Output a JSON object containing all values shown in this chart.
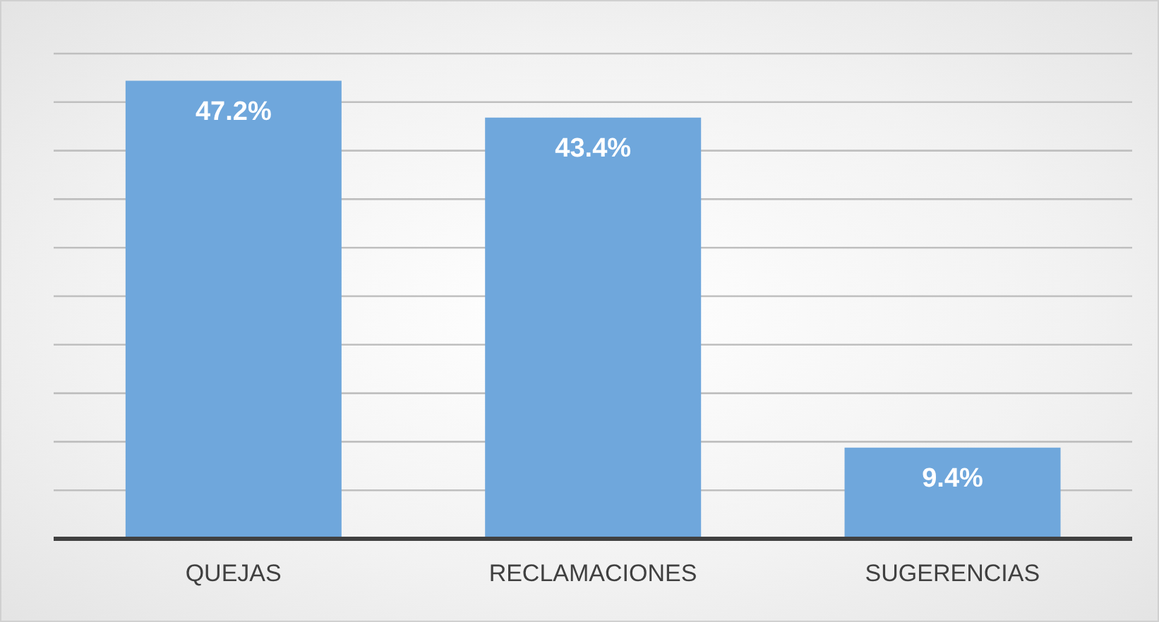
{
  "chart_data": {
    "type": "bar",
    "categories": [
      "QUEJAS",
      "RECLAMACIONES",
      "SUGERENCIAS"
    ],
    "values": [
      47.2,
      43.4,
      9.4
    ],
    "value_labels": [
      "47.2%",
      "43.4%",
      "9.4%"
    ],
    "color": "#6fa7dc",
    "ylim": [
      0,
      50
    ],
    "yticks": [
      {
        "value": 0,
        "label": null
      },
      {
        "value": 5,
        "label": null
      },
      {
        "value": 10,
        "label": null
      },
      {
        "value": 15,
        "label": null
      },
      {
        "value": 20,
        "label": null
      },
      {
        "value": 25,
        "label": null
      },
      {
        "value": 30,
        "label": null
      },
      {
        "value": 35,
        "label": null
      },
      {
        "value": 40,
        "label": null
      },
      {
        "value": 45,
        "label": null
      },
      {
        "value": 50,
        "label": null
      }
    ],
    "grid": "y",
    "tick_labels": "x",
    "legend": false
  }
}
